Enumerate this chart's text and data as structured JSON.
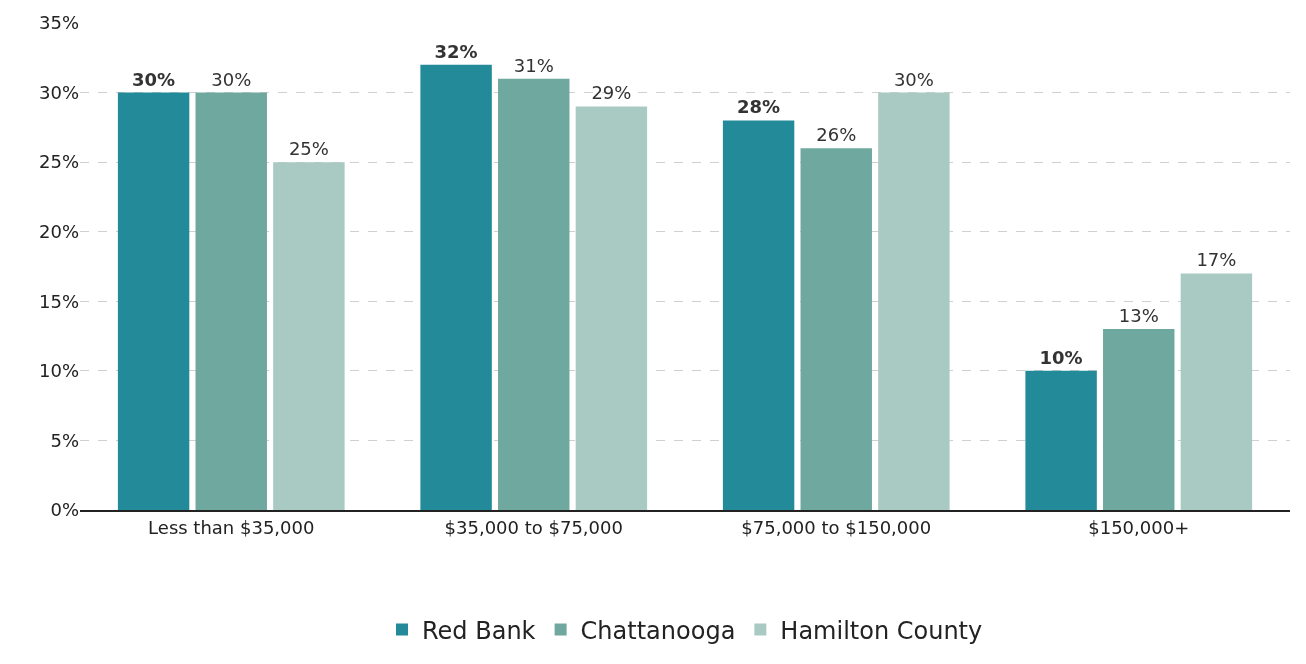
{
  "chart_data": {
    "type": "bar",
    "categories": [
      "Less than $35,000",
      "$35,000 to $75,000",
      "$75,000 to $150,000",
      "$150,000+"
    ],
    "series": [
      {
        "name": "Red Bank",
        "color": "#238a99",
        "values": [
          30,
          32,
          28,
          10
        ],
        "value_labels": [
          "30%",
          "32%",
          "28%",
          "10%"
        ]
      },
      {
        "name": "Chattanooga",
        "color": "#6fa89e",
        "values": [
          30,
          31,
          26,
          13
        ],
        "value_labels": [
          "30%",
          "31%",
          "26%",
          "13%"
        ]
      },
      {
        "name": "Hamilton County",
        "color": "#a9cac3",
        "values": [
          25,
          29,
          30,
          17
        ],
        "value_labels": [
          "25%",
          "29%",
          "30%",
          "17%"
        ]
      }
    ],
    "ylim": [
      0,
      35
    ],
    "yticks": [
      {
        "value": 0,
        "label": "0%"
      },
      {
        "value": 5,
        "label": "5%"
      },
      {
        "value": 10,
        "label": "10%"
      },
      {
        "value": 15,
        "label": "15%"
      },
      {
        "value": 20,
        "label": "20%"
      },
      {
        "value": 25,
        "label": "25%"
      },
      {
        "value": 30,
        "label": "30%"
      },
      {
        "value": 35,
        "label": "35%"
      }
    ],
    "grid": "y",
    "legend": "bottom"
  }
}
